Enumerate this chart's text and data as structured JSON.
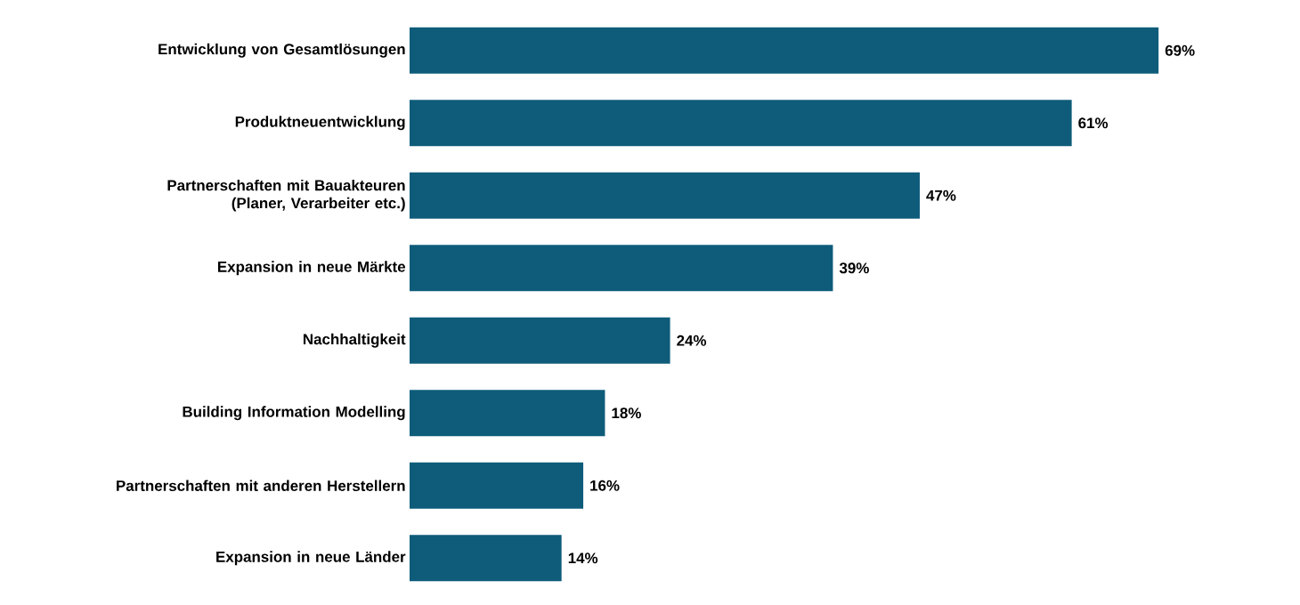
{
  "chart_data": {
    "type": "bar",
    "orientation": "horizontal",
    "categories": [
      "Entwicklung von Gesamtlösungen",
      "Produktneuentwicklung",
      "Partnerschaften mit Bauakteuren (Planer, Verarbeiter etc.)",
      "Expansion in neue Märkte",
      "Nachhaltigkeit",
      "Building Information Modelling",
      "Partnerschaften mit anderen Herstellern",
      "Expansion in neue Länder"
    ],
    "values": [
      69,
      61,
      47,
      39,
      24,
      18,
      16,
      14
    ],
    "value_labels": [
      "69%",
      "61%",
      "47%",
      "39%",
      "24%",
      "18%",
      "16%",
      "14%"
    ],
    "color": "#0e5c7a"
  }
}
